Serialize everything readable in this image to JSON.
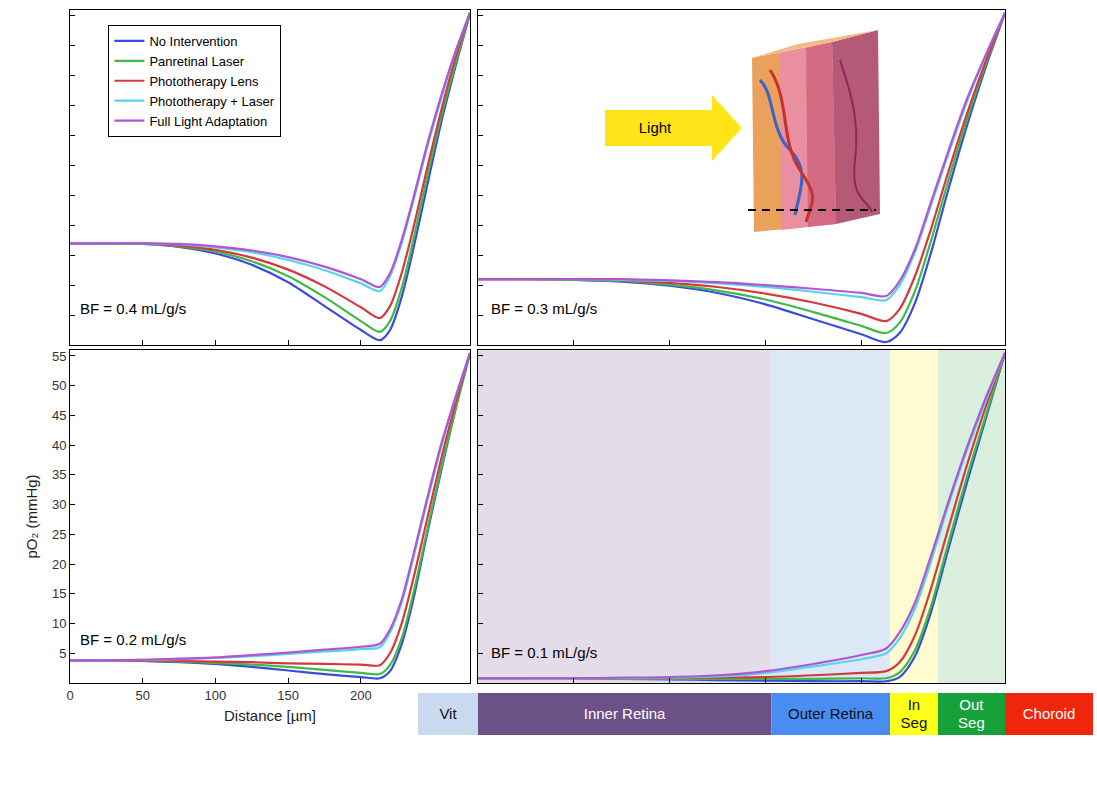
{
  "chart_data": [
    {
      "type": "line",
      "annotations": [
        "BF = 0.4 mL/g/s"
      ],
      "legend": "upper left",
      "tick_labels": false,
      "grid": false,
      "x": [
        0,
        25,
        50,
        75,
        100,
        125,
        150,
        175,
        200,
        213,
        220,
        228,
        236,
        245,
        255,
        265,
        275
      ],
      "xlim": [
        0,
        275
      ],
      "xticks": [
        0,
        50,
        100,
        150,
        200
      ],
      "ylim": [
        0,
        56
      ],
      "yticks": [
        5,
        10,
        15,
        20,
        25,
        30,
        35,
        40,
        45,
        50,
        55
      ],
      "series": [
        {
          "name": "No Intervention",
          "color": "#3a4cdb",
          "values": [
            17,
            17,
            16.9,
            16.4,
            15.3,
            13.4,
            10.5,
            6.5,
            2.5,
            0.8,
            2.5,
            8,
            16,
            26,
            37,
            46.5,
            55.5
          ]
        },
        {
          "name": "Panretinal Laser",
          "color": "#3fba4a",
          "values": [
            17,
            17,
            16.9,
            16.5,
            15.6,
            14,
            11.5,
            8,
            4,
            2.2,
            4,
            9.5,
            17.5,
            27.5,
            38,
            47,
            55.5
          ]
        },
        {
          "name": "Phototherapy Lens",
          "color": "#d9383a",
          "values": [
            17,
            17,
            17,
            16.6,
            15.9,
            14.6,
            12.6,
            9.8,
            6.3,
            4.5,
            6.5,
            12,
            19.5,
            29,
            39,
            48,
            55.5
          ]
        },
        {
          "name": "Phototherapy + Laser",
          "color": "#54d6e6",
          "values": [
            17,
            17,
            17,
            16.8,
            16.3,
            15.5,
            14.2,
            12.5,
            10.3,
            9,
            11.5,
            17,
            24,
            32.5,
            41,
            49,
            55.5
          ]
        },
        {
          "name": "Full Light Adaptation",
          "color": "#b155d6",
          "values": [
            17,
            17,
            17,
            16.9,
            16.5,
            15.8,
            14.7,
            13.1,
            11,
            9.7,
            12,
            17.5,
            24.5,
            33,
            41.5,
            49,
            55.5
          ]
        }
      ]
    },
    {
      "type": "line",
      "annotations": [
        "BF = 0.3 mL/g/s"
      ],
      "tick_labels": false,
      "grid": false,
      "x": [
        0,
        25,
        50,
        75,
        100,
        125,
        150,
        175,
        200,
        213,
        220,
        228,
        236,
        245,
        255,
        265,
        275
      ],
      "xlim": [
        0,
        275
      ],
      "xticks": [
        0,
        50,
        100,
        150,
        200
      ],
      "ylim": [
        0,
        56
      ],
      "yticks": [
        5,
        10,
        15,
        20,
        25,
        30,
        35,
        40,
        45,
        50,
        55
      ],
      "series": [
        {
          "name": "No Intervention",
          "color": "#3a4cdb",
          "values": [
            11,
            11,
            10.9,
            10.6,
            9.9,
            8.7,
            6.8,
            4.3,
            1.8,
            0.5,
            2,
            7,
            15,
            25.5,
            36.5,
            46.5,
            55.5
          ]
        },
        {
          "name": "Panretinal Laser",
          "color": "#3fba4a",
          "values": [
            11,
            11,
            10.9,
            10.7,
            10.1,
            9.1,
            7.6,
            5.5,
            3.2,
            2,
            3.7,
            9,
            17,
            27,
            37.5,
            47,
            55.5
          ]
        },
        {
          "name": "Phototherapy Lens",
          "color": "#d9383a",
          "values": [
            11,
            11,
            11,
            10.8,
            10.4,
            9.7,
            8.6,
            7.1,
            5.2,
            4,
            6,
            11.5,
            19,
            28.5,
            38.5,
            47.5,
            55.5
          ]
        },
        {
          "name": "Phototherapy + Laser",
          "color": "#54d6e6",
          "values": [
            11,
            11,
            11,
            10.9,
            10.7,
            10.3,
            9.7,
            8.9,
            8,
            7.5,
            10,
            15.5,
            23,
            31.5,
            40.5,
            48.5,
            55.5
          ]
        },
        {
          "name": "Full Light Adaptation",
          "color": "#b155d6",
          "values": [
            11,
            11,
            11,
            11,
            10.8,
            10.5,
            10,
            9.4,
            8.7,
            8.2,
            10.7,
            16,
            23.5,
            32,
            41,
            48.5,
            55.5
          ]
        }
      ]
    },
    {
      "type": "line",
      "annotations": [
        "BF = 0.2 mL/g/s"
      ],
      "grid": false,
      "x_label": "Distance [µm]",
      "y_label": "pO₂ (mmHg)",
      "x": [
        0,
        25,
        50,
        75,
        100,
        125,
        150,
        175,
        200,
        213,
        220,
        228,
        236,
        245,
        255,
        265,
        275
      ],
      "xlim": [
        0,
        275
      ],
      "xticks": [
        0,
        50,
        100,
        150,
        200
      ],
      "ylim": [
        0,
        56
      ],
      "yticks": [
        5,
        10,
        15,
        20,
        25,
        30,
        35,
        40,
        45,
        50,
        55
      ],
      "series": [
        {
          "name": "No Intervention",
          "color": "#3a4cdb",
          "values": [
            3.8,
            3.8,
            3.7,
            3.5,
            3.2,
            2.7,
            2.1,
            1.5,
            1,
            0.8,
            2,
            6.5,
            14,
            24.5,
            35.5,
            46,
            55.5
          ]
        },
        {
          "name": "Panretinal Laser",
          "color": "#3fba4a",
          "values": [
            3.8,
            3.8,
            3.7,
            3.6,
            3.4,
            3.1,
            2.7,
            2.2,
            1.7,
            1.5,
            3,
            7.5,
            15,
            25,
            36,
            46,
            55.5
          ]
        },
        {
          "name": "Phototherapy Lens",
          "color": "#d9383a",
          "values": [
            3.8,
            3.8,
            3.8,
            3.7,
            3.6,
            3.5,
            3.3,
            3.2,
            3.1,
            3,
            5,
            10,
            17.5,
            27,
            37.5,
            47,
            55.5
          ]
        },
        {
          "name": "Phototherapy + Laser",
          "color": "#54d6e6",
          "values": [
            3.8,
            3.8,
            3.9,
            4,
            4.2,
            4.5,
            4.9,
            5.3,
            5.7,
            6,
            8.5,
            13.5,
            21,
            30,
            39.5,
            48,
            55.5
          ]
        },
        {
          "name": "Full Light Adaptation",
          "color": "#b155d6",
          "values": [
            3.8,
            3.8,
            3.9,
            4.1,
            4.3,
            4.7,
            5.1,
            5.6,
            6.1,
            6.6,
            9,
            14,
            21.5,
            30.5,
            40,
            48,
            55.5
          ]
        }
      ]
    },
    {
      "type": "line",
      "annotations": [
        "BF = 0.1 mL/g/s"
      ],
      "tick_labels": false,
      "grid": false,
      "x": [
        0,
        25,
        50,
        75,
        100,
        125,
        150,
        175,
        200,
        213,
        220,
        228,
        236,
        245,
        255,
        265,
        275
      ],
      "xlim": [
        0,
        275
      ],
      "xticks": [
        0,
        50,
        100,
        150,
        200
      ],
      "ylim": [
        0,
        56
      ],
      "yticks": [
        5,
        10,
        15,
        20,
        25,
        30,
        35,
        40,
        45,
        50,
        55
      ],
      "bands": [
        {
          "name": "Inner Retina",
          "start": 0,
          "end": 153,
          "color": "#e4dde9"
        },
        {
          "name": "Outer Retina",
          "start": 153,
          "end": 215,
          "color": "#dde8f7"
        },
        {
          "name": "In Seg",
          "start": 215,
          "end": 240,
          "color": "#fdfbd0"
        },
        {
          "name": "Out Seg",
          "start": 240,
          "end": 275,
          "color": "#d9eedc"
        }
      ],
      "series": [
        {
          "name": "No Intervention",
          "color": "#3a4cdb",
          "values": [
            0.8,
            0.8,
            0.8,
            0.7,
            0.6,
            0.5,
            0.4,
            0.3,
            0.3,
            0.3,
            1,
            4.5,
            11.5,
            22,
            33.5,
            44.5,
            55.5
          ]
        },
        {
          "name": "Panretinal Laser",
          "color": "#3fba4a",
          "values": [
            0.8,
            0.8,
            0.8,
            0.7,
            0.7,
            0.7,
            0.7,
            0.7,
            0.8,
            0.8,
            1.8,
            5.5,
            12.5,
            23,
            34.5,
            45,
            55.5
          ]
        },
        {
          "name": "Phototherapy Lens",
          "color": "#d9383a",
          "values": [
            0.8,
            0.8,
            0.8,
            0.8,
            0.8,
            0.9,
            1,
            1.3,
            1.7,
            2,
            3.5,
            8,
            15.5,
            25.5,
            36.5,
            46.5,
            55.5
          ]
        },
        {
          "name": "Phototherapy + Laser",
          "color": "#54d6e6",
          "values": [
            0.8,
            0.8,
            0.8,
            0.8,
            0.9,
            1.1,
            1.7,
            2.8,
            4,
            5,
            7.5,
            12.5,
            20,
            29.5,
            39,
            47.5,
            55.5
          ]
        },
        {
          "name": "Full Light Adaptation",
          "color": "#b155d6",
          "values": [
            0.8,
            0.8,
            0.8,
            0.9,
            1,
            1.3,
            2,
            3.2,
            4.7,
            5.8,
            8.5,
            13.5,
            21,
            30,
            39.5,
            48,
            55.5
          ]
        }
      ]
    }
  ],
  "layer_bar": [
    {
      "name": "Vit",
      "color": "#c9daf0"
    },
    {
      "name": "Inner Retina",
      "color": "#6c5187"
    },
    {
      "name": "Outer Retina",
      "color": "#4a8df2"
    },
    {
      "name": "In Seg",
      "color": "#ffff1a"
    },
    {
      "name": "Out Seg",
      "color": "#16a13a"
    },
    {
      "name": "Choroid",
      "color": "#f0260c"
    }
  ],
  "inset": {
    "label": "Light"
  }
}
